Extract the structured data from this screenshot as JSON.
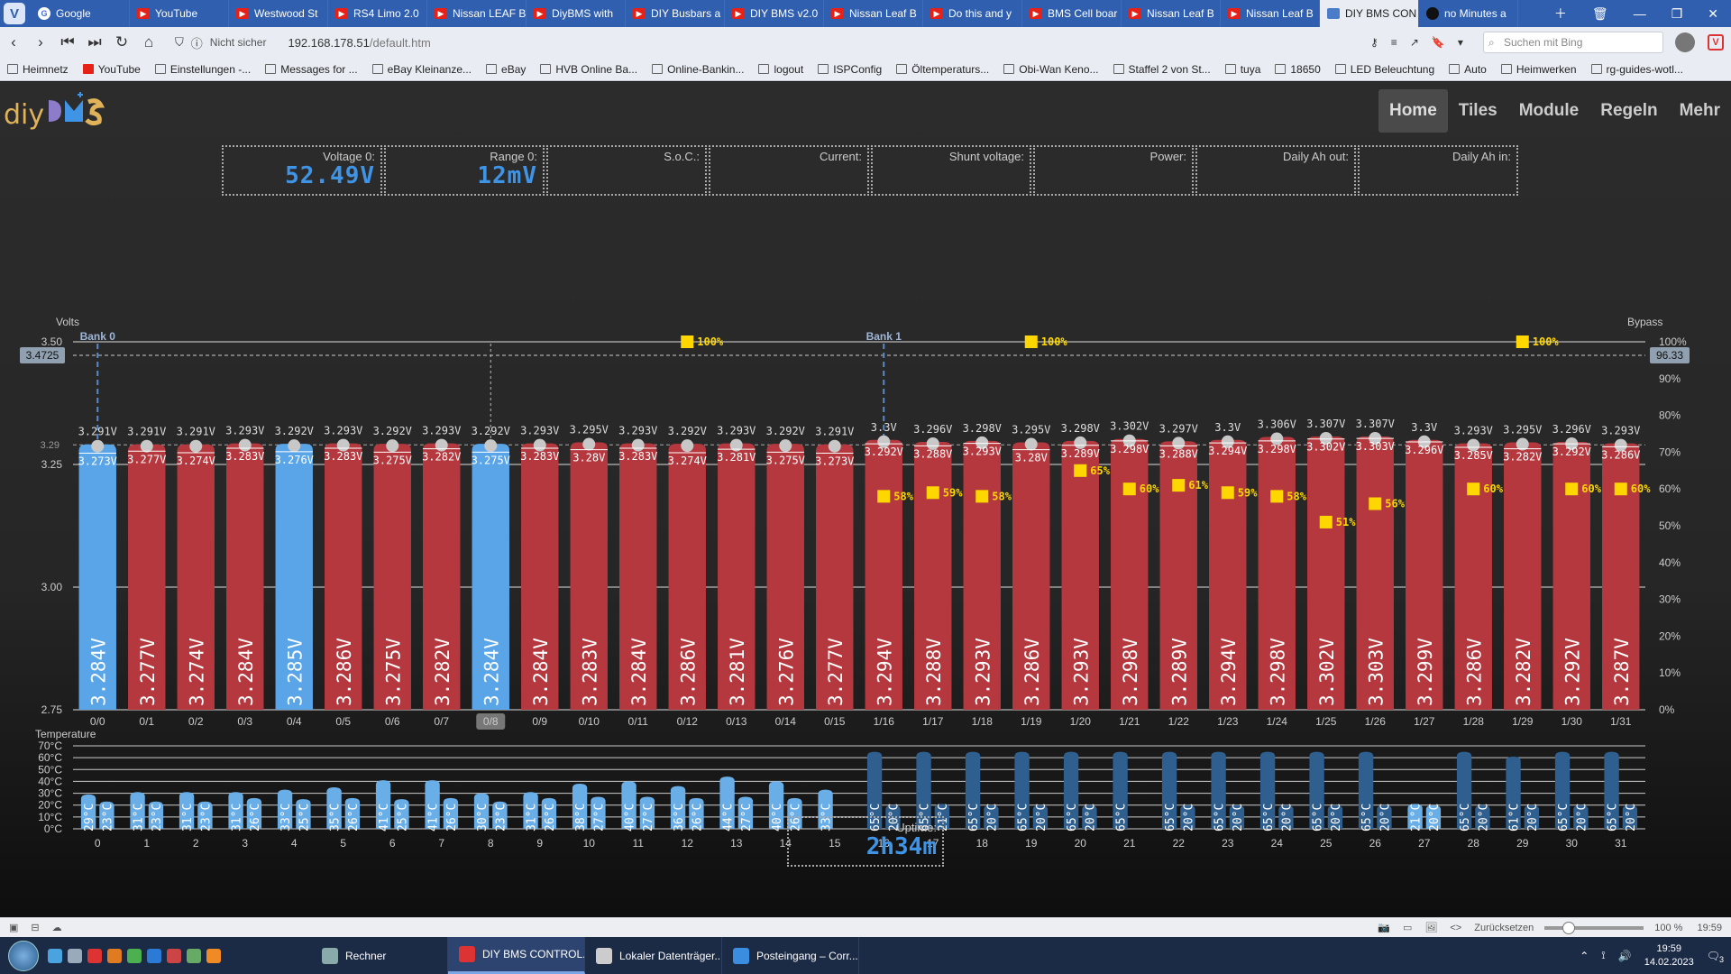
{
  "browser": {
    "tabs": [
      {
        "label": "Google",
        "icon": "google"
      },
      {
        "label": "YouTube",
        "icon": "youtube"
      },
      {
        "label": "Westwood St",
        "icon": "youtube"
      },
      {
        "label": "RS4 Limo 2.0",
        "icon": "youtube"
      },
      {
        "label": "Nissan LEAF B",
        "icon": "youtube"
      },
      {
        "label": "DiyBMS with",
        "icon": "youtube"
      },
      {
        "label": "DIY Busbars a",
        "icon": "youtube"
      },
      {
        "label": "DIY BMS v2.0",
        "icon": "youtube"
      },
      {
        "label": "Nissan Leaf B",
        "icon": "youtube"
      },
      {
        "label": "Do this and y",
        "icon": "youtube"
      },
      {
        "label": "BMS Cell boar",
        "icon": "youtube"
      },
      {
        "label": "Nissan Leaf B",
        "icon": "youtube"
      },
      {
        "label": "Nissan Leaf B",
        "icon": "youtube"
      },
      {
        "label": "DIY BMS CON",
        "icon": "diybms",
        "active": true
      },
      {
        "label": "no Minutes a",
        "icon": "github"
      }
    ],
    "insecure": "Nicht sicher",
    "url_host": "192.168.178.51",
    "url_path": "/default.htm",
    "search_placeholder": "Suchen mit Bing",
    "bookmarks": [
      "Heimnetz",
      "YouTube",
      "Einstellungen -...",
      "Messages for ...",
      "eBay Kleinanze...",
      "eBay",
      "HVB Online Ba...",
      "Online-Bankin...",
      "logout",
      "ISPConfig",
      "Öltemperaturs...",
      "Obi-Wan Keno...",
      "Staffel 2 von St...",
      "tuya",
      "18650",
      "LED Beleuchtung",
      "Auto",
      "Heimwerken",
      "rg-guides-wotl..."
    ]
  },
  "app": {
    "logo_text": "diy",
    "nav": [
      {
        "label": "Home",
        "active": true
      },
      {
        "label": "Tiles"
      },
      {
        "label": "Module"
      },
      {
        "label": "Regeln"
      },
      {
        "label": "Mehr"
      }
    ],
    "info": [
      {
        "label": "Voltage 0:",
        "value": "52.49V"
      },
      {
        "label": "Range 0:",
        "value": "12mV"
      },
      {
        "label": "S.o.C.:",
        "value": ""
      },
      {
        "label": "Current:",
        "value": ""
      },
      {
        "label": "Shunt voltage:",
        "value": ""
      },
      {
        "label": "Power:",
        "value": ""
      },
      {
        "label": "Daily Ah out:",
        "value": ""
      },
      {
        "label": "Daily Ah in:",
        "value": ""
      }
    ],
    "uptime_label": "Uptime:",
    "uptime_value": "2h34m"
  },
  "chart_data": {
    "type": "bar",
    "ylabel": "Volts",
    "y2label": "Bypass",
    "ylim": [
      2.75,
      3.5
    ],
    "yticks": [
      2.75,
      3.0,
      3.25,
      3.5
    ],
    "y2ticks": [
      "0%",
      "10%",
      "20%",
      "30%",
      "40%",
      "50%",
      "60%",
      "70%",
      "80%",
      "90%",
      "100%"
    ],
    "marker_left": "3.4725",
    "marker_left_value": 3.4725,
    "marker_right": "96.33",
    "marker_right_value": 96.33,
    "avg_label": "3.29",
    "avg_value": 3.29,
    "banks": [
      {
        "label": "Bank 0",
        "start": 0
      },
      {
        "label": "Bank 1",
        "start": 16
      }
    ],
    "categories": [
      "0/0",
      "0/1",
      "0/2",
      "0/3",
      "0/4",
      "0/5",
      "0/6",
      "0/7",
      "0/8",
      "0/9",
      "0/10",
      "0/11",
      "0/12",
      "0/13",
      "0/14",
      "0/15",
      "1/16",
      "1/17",
      "1/18",
      "1/19",
      "1/20",
      "1/21",
      "1/22",
      "1/23",
      "1/24",
      "1/25",
      "1/26",
      "1/27",
      "1/28",
      "1/29",
      "1/30",
      "1/31"
    ],
    "selected": 8,
    "voltage": [
      "3.284V",
      "3.277V",
      "3.274V",
      "3.284V",
      "3.285V",
      "3.286V",
      "3.275V",
      "3.282V",
      "3.284V",
      "3.284V",
      "3.283V",
      "3.284V",
      "3.286V",
      "3.281V",
      "3.276V",
      "3.277V",
      "3.294V",
      "3.288V",
      "3.293V",
      "3.286V",
      "3.293V",
      "3.298V",
      "3.289V",
      "3.294V",
      "3.298V",
      "3.302V",
      "3.303V",
      "3.299V",
      "3.286V",
      "3.282V",
      "3.292V",
      "3.287V"
    ],
    "values": [
      3.284,
      3.277,
      3.274,
      3.284,
      3.285,
      3.286,
      3.275,
      3.282,
      3.284,
      3.284,
      3.283,
      3.284,
      3.286,
      3.281,
      3.276,
      3.277,
      3.294,
      3.288,
      3.293,
      3.286,
      3.293,
      3.298,
      3.289,
      3.294,
      3.298,
      3.302,
      3.303,
      3.299,
      3.286,
      3.282,
      3.292,
      3.287
    ],
    "max_v": [
      "3.291V",
      "3.291V",
      "3.291V",
      "3.293V",
      "3.292V",
      "3.293V",
      "3.292V",
      "3.293V",
      "3.292V",
      "3.293V",
      "3.295V",
      "3.293V",
      "3.292V",
      "3.293V",
      "3.292V",
      "3.291V",
      "3.3V",
      "3.296V",
      "3.298V",
      "3.295V",
      "3.298V",
      "3.302V",
      "3.297V",
      "3.3V",
      "3.306V",
      "3.307V",
      "3.307V",
      "3.3V",
      "3.293V",
      "3.295V",
      "3.296V",
      "3.293V"
    ],
    "max_values": [
      3.291,
      3.291,
      3.291,
      3.293,
      3.292,
      3.293,
      3.292,
      3.293,
      3.292,
      3.293,
      3.295,
      3.293,
      3.292,
      3.293,
      3.292,
      3.291,
      3.3,
      3.296,
      3.298,
      3.295,
      3.298,
      3.302,
      3.297,
      3.3,
      3.306,
      3.307,
      3.307,
      3.3,
      3.293,
      3.295,
      3.296,
      3.293
    ],
    "min_v": [
      "3.273V",
      "3.277V",
      "3.274V",
      "3.283V",
      "3.276V",
      "3.283V",
      "3.275V",
      "3.282V",
      "3.275V",
      "3.283V",
      "3.28V",
      "3.283V",
      "3.274V",
      "3.281V",
      "3.275V",
      "3.273V",
      "3.292V",
      "3.288V",
      "3.293V",
      "3.28V",
      "3.289V",
      "3.298V",
      "3.288V",
      "3.294V",
      "3.298V",
      "3.302V",
      "3.303V",
      "3.296V",
      "3.285V",
      "3.282V",
      "3.292V",
      "3.286V"
    ],
    "min_values": [
      3.273,
      3.277,
      3.274,
      3.283,
      3.276,
      3.283,
      3.275,
      3.282,
      3.275,
      3.283,
      3.28,
      3.283,
      3.274,
      3.281,
      3.275,
      3.273,
      3.292,
      3.288,
      3.293,
      3.28,
      3.289,
      3.298,
      3.288,
      3.294,
      3.298,
      3.302,
      3.303,
      3.296,
      3.285,
      3.282,
      3.292,
      3.286
    ],
    "highlighted": [
      0,
      4,
      8
    ],
    "bypass": [
      {
        "cell": 12,
        "pct": "100%",
        "value": 100
      },
      {
        "cell": 19,
        "pct": "100%",
        "value": 100
      },
      {
        "cell": 29,
        "pct": "100%",
        "value": 100
      },
      {
        "cell": 16,
        "pct": "58%",
        "value": 58
      },
      {
        "cell": 17,
        "pct": "59%",
        "value": 59
      },
      {
        "cell": 18,
        "pct": "58%",
        "value": 58
      },
      {
        "cell": 20,
        "pct": "65%",
        "value": 65
      },
      {
        "cell": 21,
        "pct": "60%",
        "value": 60
      },
      {
        "cell": 22,
        "pct": "61%",
        "value": 61
      },
      {
        "cell": 23,
        "pct": "59%",
        "value": 59
      },
      {
        "cell": 24,
        "pct": "58%",
        "value": 58
      },
      {
        "cell": 25,
        "pct": "51%",
        "value": 51
      },
      {
        "cell": 26,
        "pct": "56%",
        "value": 56
      },
      {
        "cell": 28,
        "pct": "60%",
        "value": 60
      },
      {
        "cell": 30,
        "pct": "60%",
        "value": 60
      },
      {
        "cell": 31,
        "pct": "60%",
        "value": 60
      }
    ],
    "temp_label": "Temperature",
    "temp_ticks": [
      "70°C",
      "60°C",
      "50°C",
      "40°C",
      "30°C",
      "20°C",
      "10°C",
      "0°C"
    ],
    "temp_ext": [
      29,
      31,
      31,
      31,
      33,
      35,
      41,
      41,
      30,
      31,
      38,
      40,
      36,
      44,
      40,
      33,
      65,
      65,
      65,
      65,
      65,
      65,
      65,
      65,
      65,
      65,
      65,
      21,
      65,
      61,
      65,
      65
    ],
    "temp_int": [
      23,
      23,
      23,
      26,
      25,
      26,
      25,
      26,
      23,
      26,
      27,
      27,
      26,
      27,
      26,
      null,
      20,
      21,
      20,
      20,
      20,
      null,
      20,
      20,
      20,
      20,
      20,
      20,
      20,
      20,
      20,
      20
    ],
    "temp_ext_labels": [
      "29°C",
      "31°C",
      "31°C",
      "31°C",
      "33°C",
      "35°C",
      "41°C",
      "41°C",
      "30°C",
      "31°C",
      "38°C",
      "40°C",
      "36°C",
      "44°C",
      "40°C",
      "33°C",
      "65°C",
      "65°C",
      "65°C",
      "65°C",
      "65°C",
      "65°C",
      "65°C",
      "65°C",
      "65°C",
      "65°C",
      "65°C",
      "21°C",
      "65°C",
      "61°C",
      "65°C",
      "65°C"
    ],
    "temp_int_labels": [
      "23°C",
      "23°C",
      "23°C",
      "26°C",
      "25°C",
      "26°C",
      "25°C",
      "26°C",
      "23°C",
      "26°C",
      "27°C",
      "27°C",
      "26°C",
      "27°C",
      "26°C",
      "",
      "20°C",
      "21°C",
      "20°C",
      "20°C",
      "20°C",
      "",
      "20°C",
      "20°C",
      "20°C",
      "20°C",
      "20°C",
      "20°C",
      "20°C",
      "20°C",
      "20°C",
      "20°C"
    ],
    "module_ids": [
      "0",
      "1",
      "2",
      "3",
      "4",
      "5",
      "6",
      "7",
      "8",
      "9",
      "10",
      "11",
      "12",
      "13",
      "14",
      "15",
      "16",
      "17",
      "18",
      "19",
      "20",
      "21",
      "22",
      "23",
      "24",
      "25",
      "26",
      "27",
      "28",
      "29",
      "30",
      "31"
    ],
    "colors": {
      "bar": "#b5383e",
      "bar_selected": "#5aa5e8",
      "temp": "#2f5f8f",
      "temp_light": "#6aaee8",
      "bypass": "#ffd700"
    }
  },
  "status": {
    "reset": "Zurücksetzen",
    "zoom": "100 %",
    "time": "19:59"
  },
  "taskbar": {
    "tasks": [
      {
        "label": "Rechner",
        "icon": "calculator"
      },
      {
        "label": "DIY BMS CONTROL...",
        "icon": "vivaldi",
        "active": true
      },
      {
        "label": "Lokaler Datenträger...",
        "icon": "drive"
      },
      {
        "label": "Posteingang – Corr...",
        "icon": "mail"
      }
    ],
    "time": "19:59",
    "date": "14.02.2023",
    "notif": "3"
  }
}
